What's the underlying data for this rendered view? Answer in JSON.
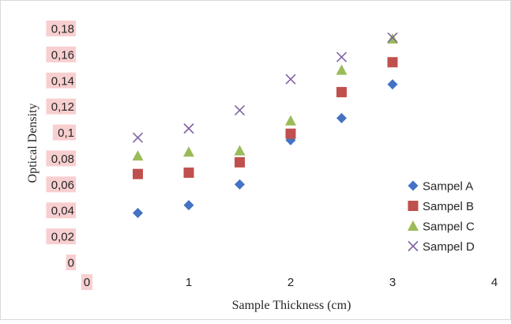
{
  "chart_data": {
    "type": "scatter",
    "title": "",
    "xlabel": "Sample Thickness (cm)",
    "ylabel": "Optical Density",
    "xlim": [
      0,
      4
    ],
    "ylim": [
      0,
      0.18
    ],
    "x_ticks": [
      "0",
      "1",
      "2",
      "3",
      "4"
    ],
    "y_ticks": [
      "0",
      "0,02",
      "0,04",
      "0,06",
      "0,08",
      "0,1",
      "0,12",
      "0,14",
      "0,16",
      "0,18"
    ],
    "grid": false,
    "legend_position": "bottom-right",
    "series": [
      {
        "name": "Sampel A",
        "marker": "diamond",
        "color": "#4472c4",
        "x": [
          0.5,
          1,
          1.5,
          2,
          2.5,
          3
        ],
        "y": [
          0.038,
          0.044,
          0.06,
          0.094,
          0.111,
          0.137
        ]
      },
      {
        "name": "Sampel B",
        "marker": "square",
        "color": "#c0504d",
        "x": [
          0.5,
          1,
          1.5,
          2,
          2.5,
          3
        ],
        "y": [
          0.068,
          0.069,
          0.077,
          0.099,
          0.131,
          0.154
        ]
      },
      {
        "name": "Sampel C",
        "marker": "triangle",
        "color": "#9bbb59",
        "x": [
          0.5,
          1,
          1.5,
          2,
          2.5,
          3
        ],
        "y": [
          0.082,
          0.085,
          0.086,
          0.109,
          0.148,
          0.172
        ]
      },
      {
        "name": "Sampel D",
        "marker": "x",
        "color": "#8064a2",
        "x": [
          0.5,
          1,
          1.5,
          2,
          2.5,
          3
        ],
        "y": [
          0.096,
          0.103,
          0.117,
          0.141,
          0.158,
          0.173
        ]
      }
    ]
  }
}
